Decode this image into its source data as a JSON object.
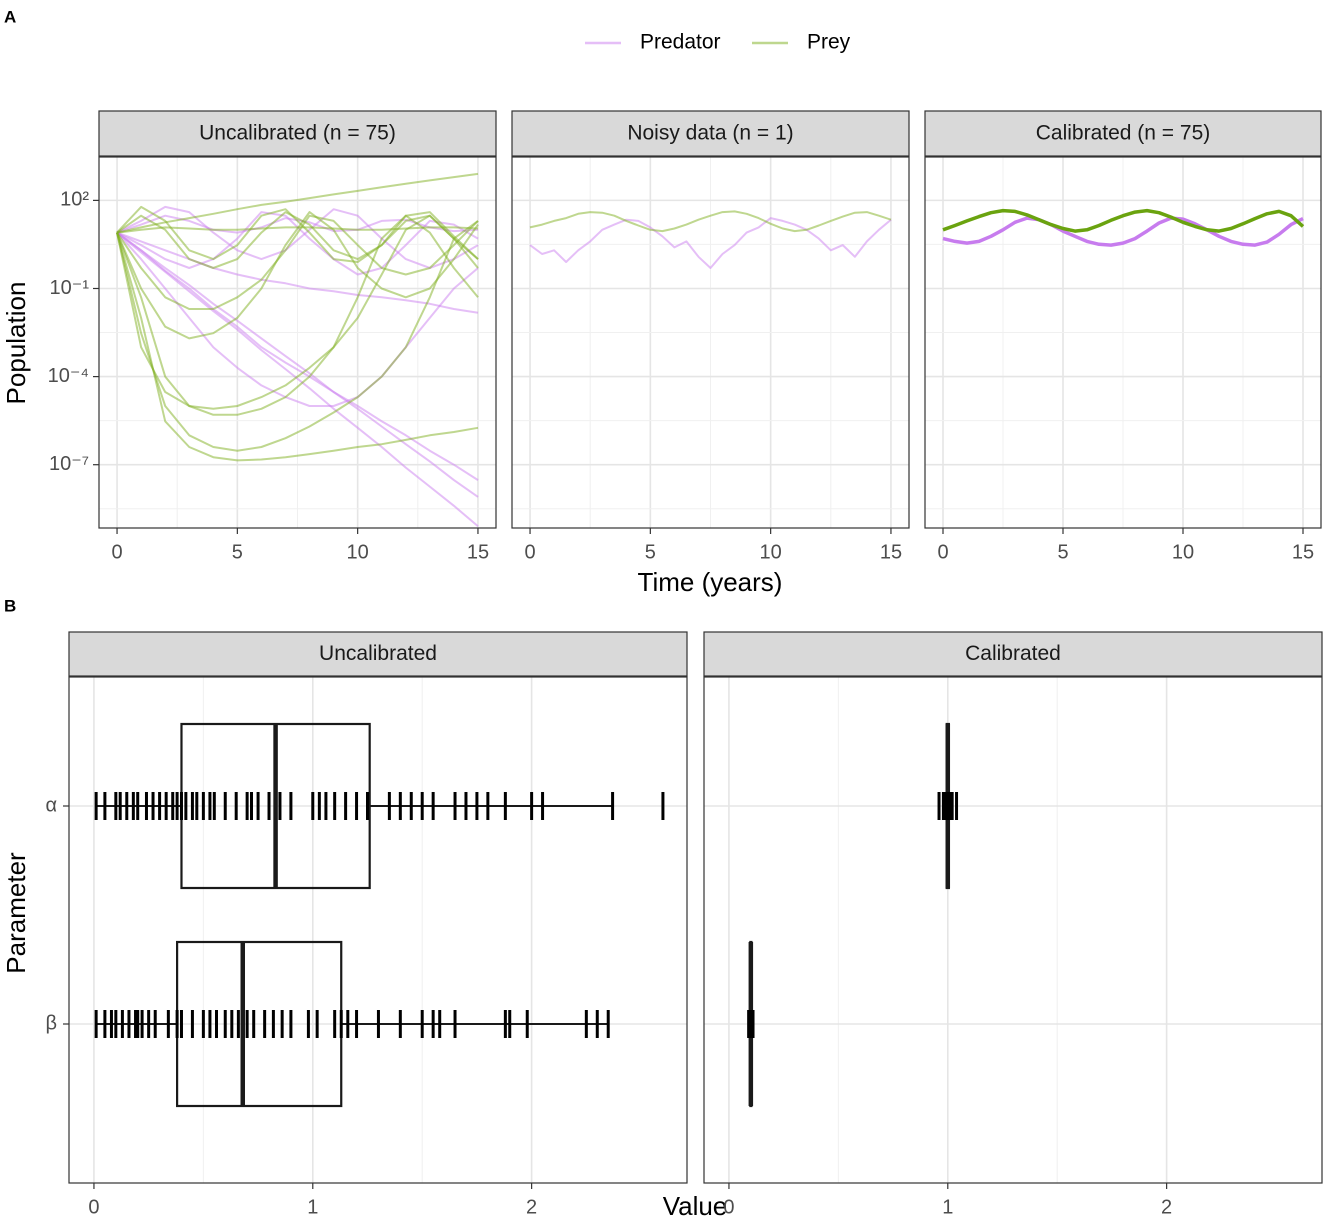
{
  "panel_tags": [
    "A",
    "B"
  ],
  "chart_data": [
    {
      "type": "line",
      "title": "Uncalibrated (n = 75)",
      "ylabel": "Population",
      "legend": "top",
      "log_y": true,
      "grid": true,
      "alpha": 0.5,
      "x": [
        0,
        1,
        2,
        3,
        4,
        5,
        6,
        7,
        8,
        9,
        10,
        11,
        12,
        13,
        14,
        15
      ],
      "xlim": [
        -0.75,
        15.75
      ],
      "xticks": [
        0,
        5,
        10,
        15
      ],
      "ylim": [
        7e-10,
        3000
      ],
      "yticks": [
        {
          "value": 1e-07,
          "label": "10⁻⁷"
        },
        {
          "value": 0.0001,
          "label": "10⁻⁴"
        },
        {
          "value": 0.1,
          "label": "10⁻¹"
        },
        {
          "value": 100,
          "label": "10²"
        }
      ],
      "series": [
        {
          "name": "Predator",
          "color": "#cc7ff0",
          "runs": [
            [
              8,
              1.7,
              0.37,
              0.08,
              0.017,
              0.004,
              0.0008,
              0.00018,
              4e-05,
              8e-06,
              1.8e-06,
              4e-07,
              8e-08,
              1.8e-08,
              4e-09,
              8e-10
            ],
            [
              8,
              2,
              0.5,
              0.13,
              0.03,
              0.008,
              0.002,
              0.0005,
              0.00013,
              3e-05,
              8e-06,
              2e-06,
              5e-07,
              1.3e-07,
              3e-08,
              8e-09
            ],
            [
              8,
              15,
              30,
              20,
              10,
              8,
              12,
              25,
              18,
              9,
              10,
              20,
              22,
              12,
              9,
              10
            ],
            [
              8,
              3,
              1,
              0.5,
              1,
              5,
              40,
              30,
              5,
              1,
              0.3,
              0.5,
              3,
              20,
              15,
              5
            ],
            [
              8,
              4,
              2,
              1,
              0.5,
              0.3,
              0.2,
              0.15,
              0.1,
              0.08,
              0.06,
              0.05,
              0.04,
              0.03,
              0.02,
              0.015
            ],
            [
              8,
              20,
              60,
              40,
              8,
              2,
              1,
              2,
              10,
              50,
              30,
              5,
              1,
              0.5,
              1,
              3
            ],
            [
              8,
              1,
              0.1,
              0.01,
              0.001,
              0.0002,
              5e-05,
              2e-05,
              1e-05,
              1e-05,
              2e-05,
              0.0001,
              0.001,
              0.01,
              0.1,
              0.5
            ],
            [
              8,
              2,
              0.4,
              0.1,
              0.02,
              0.005,
              0.001,
              0.0003,
              0.0001,
              3e-05,
              1e-05,
              3e-06,
              1e-06,
              3e-07,
              1e-07,
              3e-08
            ]
          ]
        },
        {
          "name": "Prey",
          "color": "#7fb020",
          "runs": [
            [
              8,
              12,
              18,
              25,
              35,
              50,
              70,
              90,
              120,
              160,
              210,
              280,
              370,
              480,
              620,
              800
            ],
            [
              8,
              0.01,
              3e-06,
              4e-07,
              1.8e-07,
              1.4e-07,
              1.5e-07,
              1.8e-07,
              2.3e-07,
              3e-07,
              4e-07,
              5e-07,
              7e-07,
              1e-06,
              1.3e-06,
              1.8e-06
            ],
            [
              8,
              0.05,
              0.0001,
              1e-05,
              5e-06,
              5e-06,
              8e-06,
              2e-05,
              0.0001,
              0.001,
              0.05,
              5,
              30,
              8,
              0.5,
              0.05
            ],
            [
              8,
              0.5,
              0.05,
              0.02,
              0.02,
              0.05,
              0.2,
              2,
              30,
              20,
              3,
              0.5,
              0.3,
              0.5,
              3,
              20
            ],
            [
              8,
              30,
              10,
              1,
              0.5,
              1,
              8,
              40,
              15,
              2,
              1,
              3,
              20,
              30,
              5,
              1
            ],
            [
              8,
              0.003,
              1e-05,
              1e-06,
              4e-07,
              3e-07,
              4e-07,
              8e-07,
              2e-06,
              6e-06,
              2e-05,
              0.0001,
              0.001,
              0.05,
              5,
              20
            ],
            [
              8,
              0.1,
              0.005,
              0.002,
              0.003,
              0.01,
              0.1,
              3,
              40,
              10,
              0.5,
              0.1,
              0.05,
              0.1,
              1,
              15
            ],
            [
              8,
              10,
              12,
              11,
              10,
              10,
              11,
              12,
              12,
              11,
              10,
              10,
              11,
              12,
              12,
              11
            ],
            [
              8,
              60,
              20,
              2,
              1,
              3,
              30,
              50,
              8,
              1,
              0.8,
              3,
              30,
              40,
              6,
              1
            ],
            [
              8,
              0.001,
              3e-05,
              1e-05,
              8e-06,
              1e-05,
              2e-05,
              5e-05,
              0.0002,
              0.001,
              0.01,
              0.3,
              10,
              30,
              5,
              0.5
            ]
          ]
        }
      ]
    },
    {
      "type": "line",
      "title": "Noisy data (n = 1)",
      "xlabel": "Time (years)",
      "alpha": 0.5,
      "x": [
        0,
        0.5,
        1,
        1.5,
        2,
        2.5,
        3,
        3.5,
        4,
        4.5,
        5,
        5.5,
        6,
        6.5,
        7,
        7.5,
        8,
        8.5,
        9,
        9.5,
        10,
        10.5,
        11,
        11.5,
        12,
        12.5,
        13,
        13.5,
        14,
        14.5,
        15
      ],
      "xlim": [
        -0.75,
        15.75
      ],
      "xticks": [
        0,
        5,
        10,
        15
      ],
      "series": [
        {
          "color": "#cc7ff0",
          "runs": [
            [
              3,
              1.5,
              2,
              0.8,
              2,
              4,
              10,
              15,
              22,
              20,
              12,
              6,
              2.5,
              4,
              1.2,
              0.5,
              1.5,
              3,
              8,
              12,
              25,
              20,
              15,
              10,
              5,
              2,
              3,
              1.2,
              4,
              10,
              22
            ]
          ]
        },
        {
          "color": "#7fb020",
          "runs": [
            [
              12,
              15,
              20,
              25,
              35,
              40,
              38,
              30,
              20,
              14,
              10,
              9,
              11,
              15,
              22,
              30,
              40,
              42,
              35,
              25,
              16,
              11,
              9,
              10,
              14,
              20,
              28,
              38,
              40,
              30,
              22
            ]
          ]
        }
      ]
    },
    {
      "type": "line",
      "title": "Calibrated (n = 75)",
      "alpha": 1,
      "x": [
        0,
        0.5,
        1,
        1.5,
        2,
        2.5,
        3,
        3.5,
        4,
        4.5,
        5,
        5.5,
        6,
        6.5,
        7,
        7.5,
        8,
        8.5,
        9,
        9.5,
        10,
        10.5,
        11,
        11.5,
        12,
        12.5,
        13,
        13.5,
        14,
        14.5,
        15
      ],
      "xlim": [
        -0.75,
        15.75
      ],
      "xticks": [
        0,
        5,
        10,
        15
      ],
      "series": [
        {
          "color": "#c77cee",
          "runs": [
            [
              5,
              4,
              3.5,
              4,
              6,
              10,
              18,
              25,
              22,
              15,
              9,
              6,
              4,
              3.2,
              3,
              3.5,
              5,
              9,
              17,
              25,
              23,
              16,
              10,
              6,
              4,
              3.2,
              3,
              3.8,
              7,
              15,
              24
            ]
          ]
        },
        {
          "color": "#6aa30f",
          "runs": [
            [
              10,
              14,
              20,
              28,
              38,
              45,
              42,
              32,
              22,
              15,
              11,
              9,
              10,
              14,
              21,
              30,
              40,
              45,
              38,
              27,
              18,
              13,
              10,
              9,
              11,
              16,
              24,
              35,
              42,
              30,
              13
            ]
          ]
        }
      ]
    },
    {
      "type": "box",
      "title": "Uncalibrated",
      "xlabel": "Value",
      "ylabel": "Parameter",
      "grid": true,
      "categories": [
        "α",
        "β"
      ],
      "xlim": [
        -0.114,
        2.71
      ],
      "xticks": [
        0,
        1,
        2
      ],
      "boxes": [
        {
          "whislo": 0.01,
          "q1": 0.4,
          "med": 0.83,
          "q3": 1.26,
          "whishi": 2.37
        },
        {
          "whislo": 0.01,
          "q1": 0.38,
          "med": 0.68,
          "q3": 1.13,
          "whishi": 2.35
        }
      ],
      "rug": [
        [
          0.01,
          0.05,
          0.1,
          0.12,
          0.15,
          0.18,
          0.2,
          0.24,
          0.27,
          0.3,
          0.33,
          0.36,
          0.38,
          0.4,
          0.42,
          0.45,
          0.47,
          0.5,
          0.53,
          0.55,
          0.6,
          0.65,
          0.7,
          0.72,
          0.75,
          0.8,
          0.85,
          0.9,
          1.0,
          1.03,
          1.06,
          1.1,
          1.15,
          1.2,
          1.25,
          1.35,
          1.4,
          1.45,
          1.5,
          1.55,
          1.65,
          1.7,
          1.75,
          1.8,
          1.88,
          2.0,
          2.05,
          2.37,
          2.6
        ],
        [
          0.01,
          0.05,
          0.08,
          0.1,
          0.13,
          0.16,
          0.19,
          0.2,
          0.22,
          0.25,
          0.28,
          0.34,
          0.38,
          0.4,
          0.45,
          0.5,
          0.53,
          0.56,
          0.6,
          0.63,
          0.66,
          0.7,
          0.73,
          0.78,
          0.82,
          0.86,
          0.9,
          0.98,
          1.02,
          1.1,
          1.13,
          1.16,
          1.2,
          1.3,
          1.4,
          1.5,
          1.55,
          1.58,
          1.65,
          1.88,
          1.9,
          1.98,
          2.25,
          2.3,
          2.35
        ]
      ]
    },
    {
      "type": "box",
      "title": "Calibrated",
      "xlim": [
        -0.114,
        2.71
      ],
      "xticks": [
        0,
        1,
        2
      ],
      "boxes": [
        {
          "whislo": 0.99,
          "q1": 0.995,
          "med": 1.0,
          "q3": 1.005,
          "whishi": 1.01
        },
        {
          "whislo": 0.095,
          "q1": 0.098,
          "med": 0.1,
          "q3": 0.102,
          "whishi": 0.105
        }
      ],
      "rug": [
        [
          0.96,
          0.98,
          0.99,
          1.0,
          1.01,
          1.02,
          1.04
        ],
        [
          0.09,
          0.1,
          0.11
        ]
      ]
    }
  ]
}
